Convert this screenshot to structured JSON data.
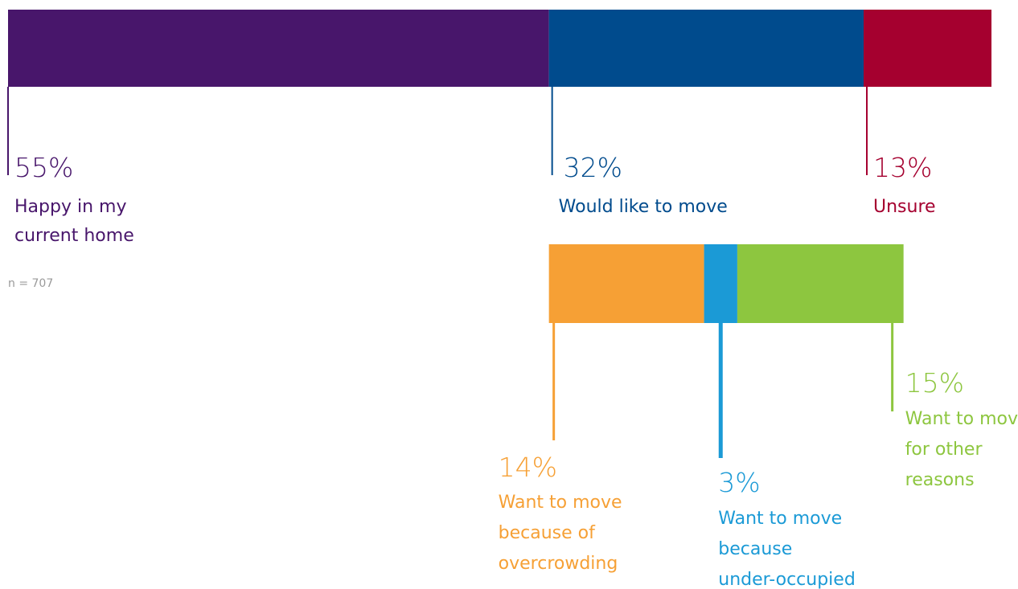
{
  "chart_data": {
    "type": "bar",
    "orientation": "horizontal-stacked",
    "note": "n = 707",
    "main": {
      "segments": [
        {
          "value": 55,
          "pct": "55%",
          "lines": [
            "Happy in my",
            "current home"
          ],
          "color": "#48166b"
        },
        {
          "value": 32,
          "pct": "32%",
          "lines": [
            "Would like to move"
          ],
          "color": "#004b8d"
        },
        {
          "value": 13,
          "pct": "13%",
          "lines": [
            "Unsure"
          ],
          "color": "#a5002f"
        }
      ]
    },
    "breakdown": {
      "of_segment": 1,
      "segments": [
        {
          "value": 14,
          "pct": "14%",
          "lines": [
            "Want to move",
            "because of",
            "overcrowding"
          ],
          "color": "#f6a035"
        },
        {
          "value": 3,
          "pct": "3%",
          "lines": [
            "Want to move",
            "because",
            "under-occupied"
          ],
          "color": "#1b9ad6"
        },
        {
          "value": 15,
          "pct": "15%",
          "lines": [
            "Want to move",
            "for other",
            "reasons"
          ],
          "color": "#8dc63f"
        }
      ]
    }
  }
}
